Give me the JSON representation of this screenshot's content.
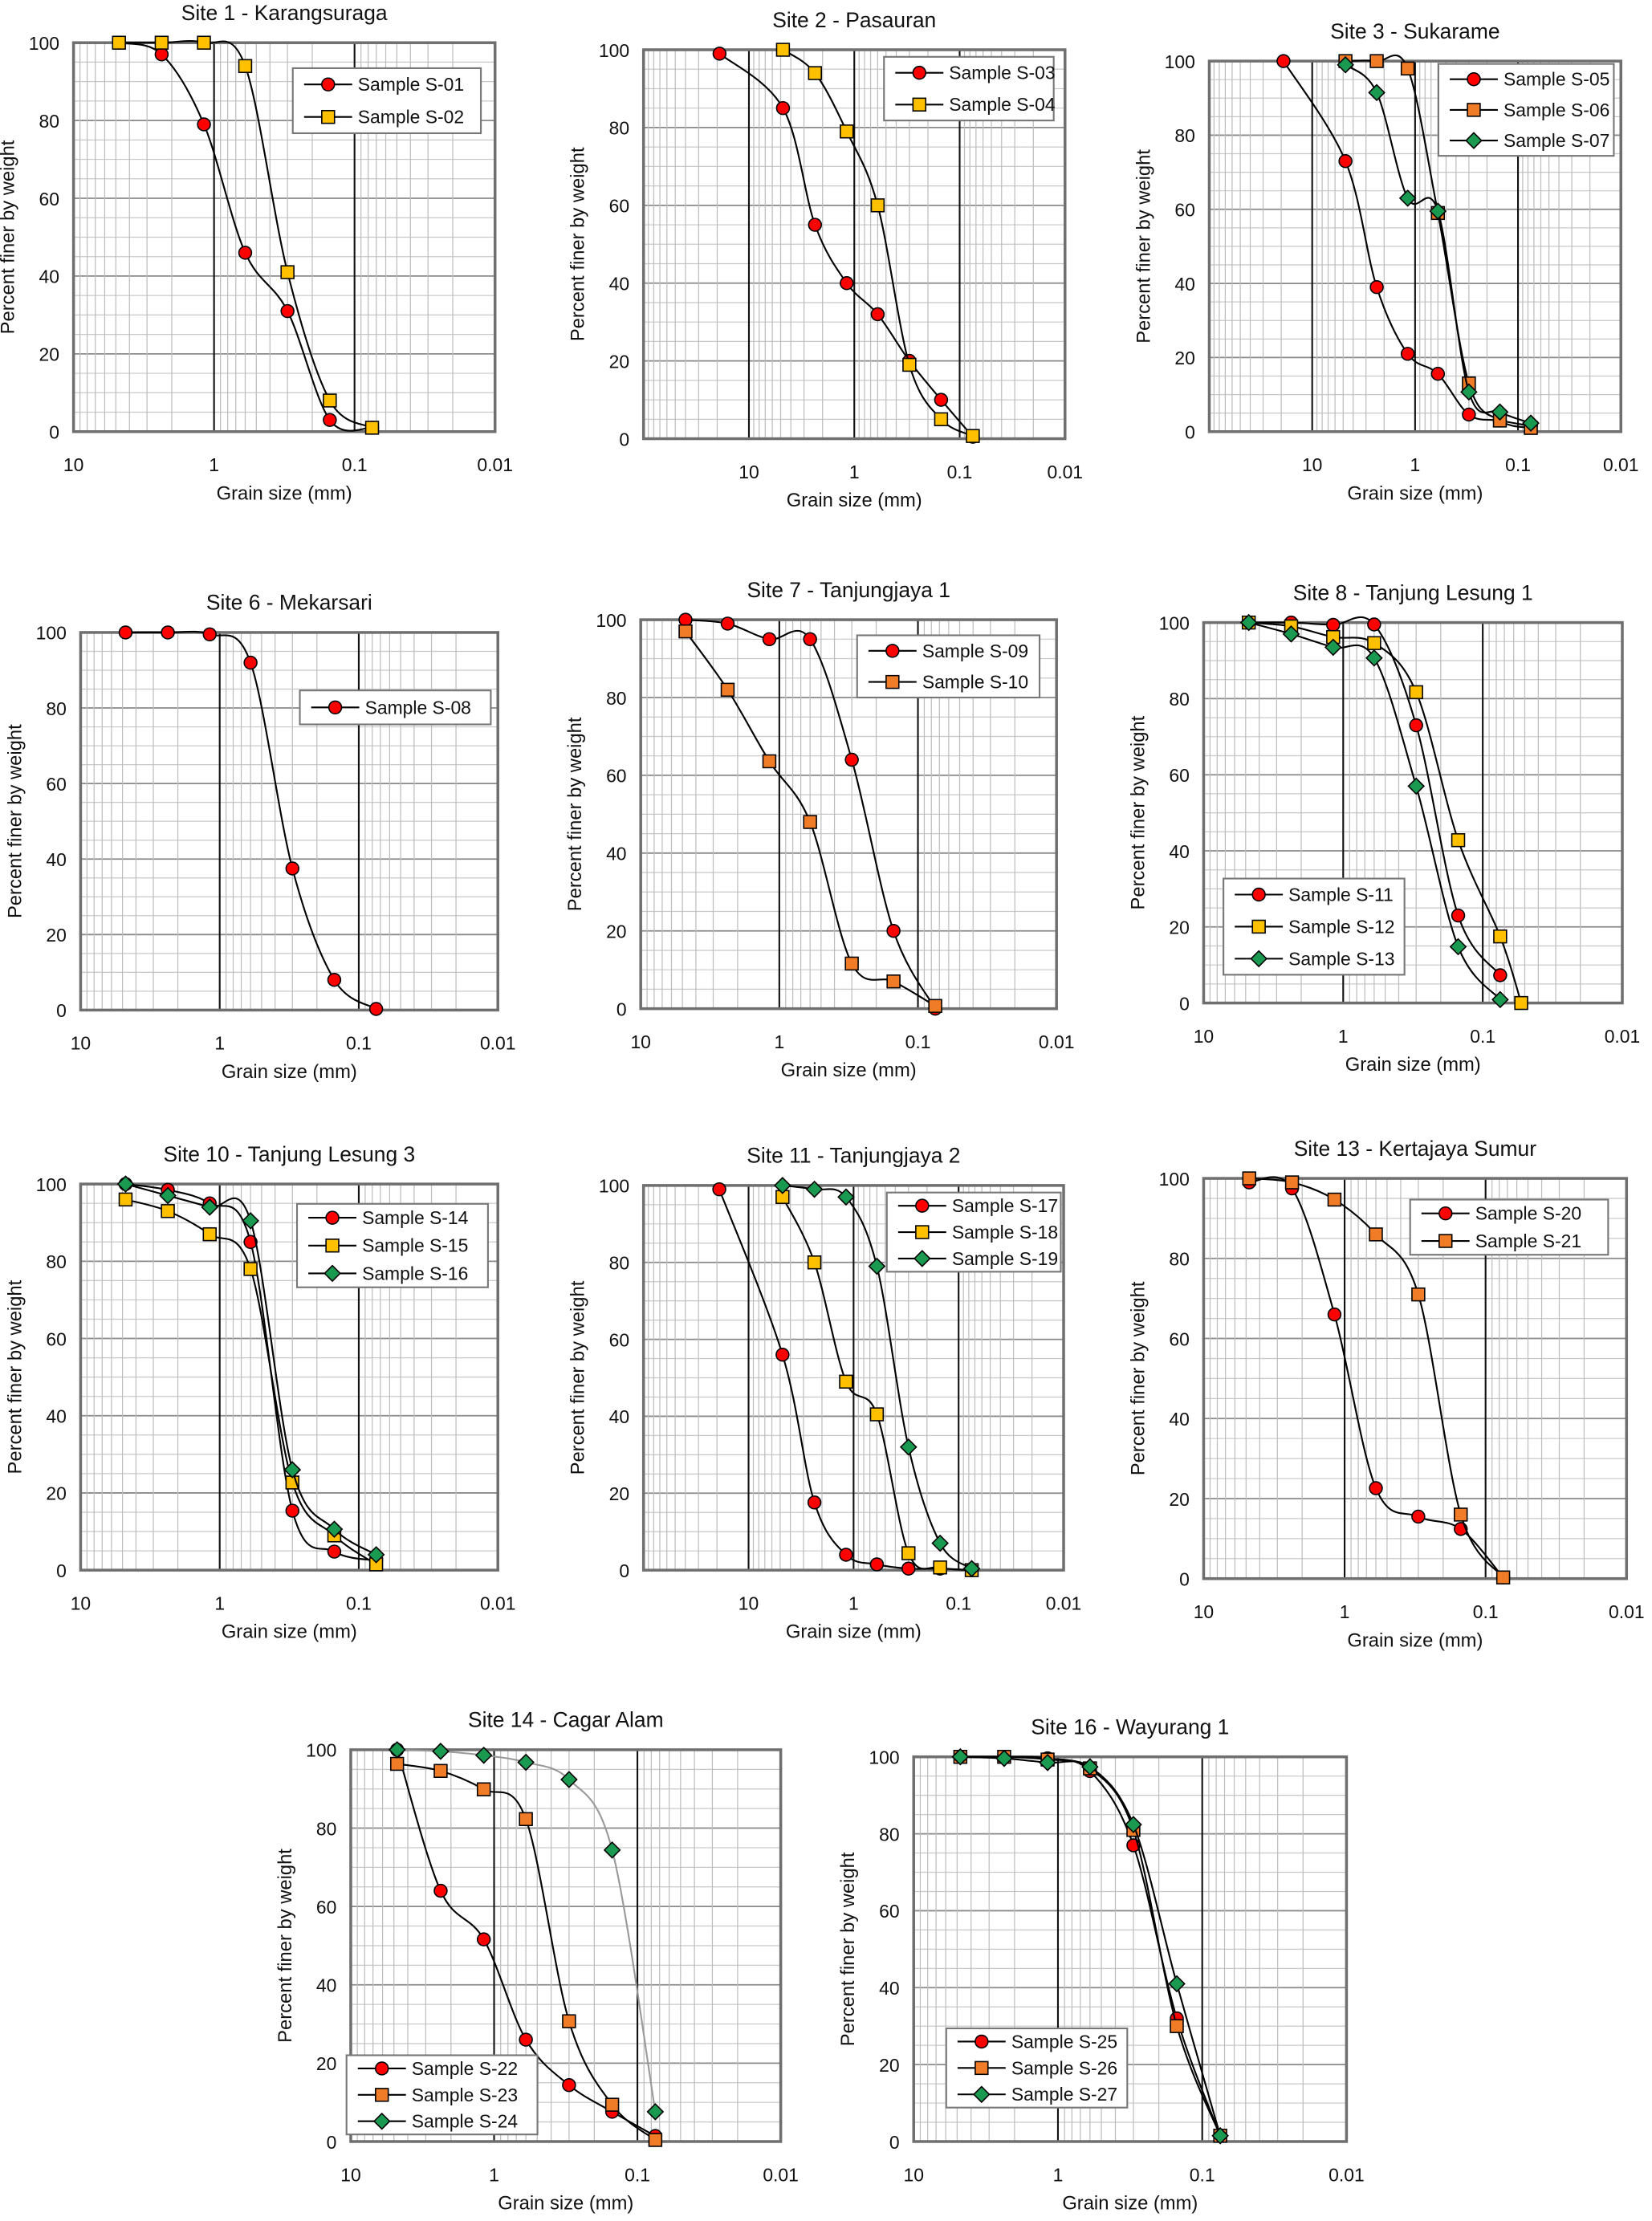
{
  "chart_data": [
    {
      "type": "line",
      "title": "Site 1 - Karangsuraga",
      "xlabel": "Grain size (mm)",
      "ylabel": "Percent finer by weight",
      "xscale": "log",
      "x_reversed": true,
      "xlim": [
        10,
        0.01
      ],
      "ylim": [
        0,
        100
      ],
      "xticks": [
        "10",
        "1",
        "0.1",
        "0.01"
      ],
      "yticks": [
        "0",
        "20",
        "40",
        "60",
        "80",
        "100"
      ],
      "grid": true,
      "legend": "top-right",
      "series": [
        {
          "name": "Sample S-01",
          "marker": "circle",
          "color": "#ff0000",
          "x": [
            4.75,
            2.36,
            1.18,
            0.6,
            0.3,
            0.15,
            0.075
          ],
          "y": [
            100,
            97,
            79,
            46,
            31,
            3,
            1
          ]
        },
        {
          "name": "Sample S-02",
          "marker": "square",
          "color": "#ffc000",
          "x": [
            4.75,
            2.36,
            1.18,
            0.6,
            0.3,
            0.15,
            0.075
          ],
          "y": [
            100,
            100,
            100,
            94,
            41,
            8,
            1
          ]
        }
      ]
    },
    {
      "type": "line",
      "title": "Site 2 - Pasauran",
      "xlabel": "Grain size (mm)",
      "ylabel": "Percent finer by weight",
      "xscale": "log",
      "x_reversed": true,
      "xlim": [
        100,
        0.01
      ],
      "ylim": [
        0,
        100
      ],
      "xticks": [
        "10",
        "1",
        "0.1",
        "0.01"
      ],
      "yticks": [
        "0",
        "20",
        "40",
        "60",
        "80",
        "100"
      ],
      "grid": true,
      "legend": "top-right",
      "series": [
        {
          "name": "Sample S-03",
          "marker": "circle",
          "color": "#ff0000",
          "x": [
            19,
            4.75,
            2.36,
            1.18,
            0.6,
            0.3,
            0.15,
            0.075
          ],
          "y": [
            99,
            85,
            55,
            40,
            32,
            20,
            10,
            0.5
          ]
        },
        {
          "name": "Sample S-04",
          "marker": "square",
          "color": "#ffc000",
          "x": [
            4.75,
            2.36,
            1.18,
            0.6,
            0.3,
            0.15,
            0.075
          ],
          "y": [
            100,
            94,
            79,
            60,
            19,
            5,
            0.7
          ]
        }
      ]
    },
    {
      "type": "line",
      "title": "Site 3 - Sukarame",
      "xlabel": "Grain size (mm)",
      "ylabel": "Percent finer by weight",
      "xscale": "log",
      "x_reversed": true,
      "xlim": [
        100,
        0.01
      ],
      "ylim": [
        0,
        100
      ],
      "xticks": [
        "10",
        "1",
        "0.1",
        "0.01"
      ],
      "yticks": [
        "0",
        "20",
        "40",
        "60",
        "80",
        "100"
      ],
      "grid": true,
      "legend": "top-right",
      "series": [
        {
          "name": "Sample S-05",
          "marker": "circle",
          "color": "#ff0000",
          "x": [
            19,
            4.75,
            2.36,
            1.18,
            0.6,
            0.3,
            0.15,
            0.075
          ],
          "y": [
            100,
            73,
            39,
            21,
            15.6,
            4.6,
            3,
            1.5
          ]
        },
        {
          "name": "Sample S-06",
          "marker": "square",
          "color": "#f07c28",
          "x": [
            4.75,
            2.36,
            1.18,
            0.6,
            0.3,
            0.15,
            0.075
          ],
          "y": [
            100,
            100,
            98,
            59,
            13,
            3,
            1
          ]
        },
        {
          "name": "Sample S-07",
          "marker": "diamond",
          "color": "#1a9a50",
          "x": [
            4.75,
            2.36,
            1.18,
            0.6,
            0.3,
            0.15,
            0.075
          ],
          "y": [
            99,
            91.5,
            63,
            59.5,
            10.7,
            5.3,
            2.3
          ]
        }
      ]
    },
    {
      "type": "line",
      "title": "Site 6 - Mekarsari",
      "xlabel": "Grain size  (mm)",
      "ylabel": "Percent finer by weight",
      "xscale": "log",
      "x_reversed": true,
      "xlim": [
        10,
        0.01
      ],
      "ylim": [
        0,
        100
      ],
      "xticks": [
        "10",
        "1",
        "0.1",
        "0.01"
      ],
      "yticks": [
        "0",
        "20",
        "40",
        "60",
        "80",
        "100"
      ],
      "grid": true,
      "legend": "top-right",
      "series": [
        {
          "name": "Sample S-08",
          "marker": "circle",
          "color": "#ff0000",
          "x": [
            4.75,
            2.36,
            1.18,
            0.6,
            0.3,
            0.15,
            0.075
          ],
          "y": [
            100,
            100,
            99.5,
            92,
            37.5,
            8,
            0.3
          ]
        }
      ]
    },
    {
      "type": "line",
      "title": "Site 7 - Tanjungjaya 1",
      "xlabel": "Grain size (mm)",
      "ylabel": "Percent finer by weight",
      "xscale": "log",
      "x_reversed": true,
      "xlim": [
        10,
        0.01
      ],
      "ylim": [
        0,
        100
      ],
      "xticks": [
        "10",
        "1",
        "0.1",
        "0.01"
      ],
      "yticks": [
        "0",
        "20",
        "40",
        "60",
        "80",
        "100"
      ],
      "grid": true,
      "legend": "top-right",
      "series": [
        {
          "name": "Sample S-09",
          "marker": "circle",
          "color": "#ff0000",
          "x": [
            4.75,
            2.36,
            1.18,
            0.6,
            0.3,
            0.15,
            0.075
          ],
          "y": [
            100,
            99,
            95,
            95,
            64,
            20,
            0
          ]
        },
        {
          "name": "Sample S-10",
          "marker": "square",
          "color": "#f07c28",
          "x": [
            4.75,
            2.36,
            1.18,
            0.6,
            0.3,
            0.15,
            0.075
          ],
          "y": [
            97,
            82,
            63.6,
            48,
            11.6,
            7,
            0.7
          ]
        }
      ]
    },
    {
      "type": "line",
      "title": "Site 8 - Tanjung  Lesung 1",
      "xlabel": "Grain size (mm)",
      "ylabel": "Percent finer by weight",
      "xscale": "log",
      "x_reversed": true,
      "xlim": [
        10,
        0.01
      ],
      "ylim": [
        0,
        100
      ],
      "xticks": [
        "10",
        "1",
        "0.1",
        "0.01"
      ],
      "yticks": [
        "0",
        "20",
        "40",
        "60",
        "80",
        "100"
      ],
      "grid": true,
      "legend": "bottom-left",
      "series": [
        {
          "name": "Sample S-11",
          "marker": "circle",
          "color": "#ff0000",
          "x": [
            4.75,
            2.36,
            1.18,
            0.6,
            0.3,
            0.15,
            0.075
          ],
          "y": [
            100,
            100,
            99.4,
            99.5,
            73,
            23,
            7.3
          ]
        },
        {
          "name": "Sample S-12",
          "marker": "square",
          "color": "#ffc000",
          "x": [
            4.75,
            2.36,
            1.18,
            0.6,
            0.3,
            0.15,
            0.075,
            0.053
          ],
          "y": [
            100,
            99,
            96.2,
            94.6,
            81.7,
            42.8,
            17.5,
            0
          ]
        },
        {
          "name": "Sample S-13",
          "marker": "diamond",
          "color": "#1a9a50",
          "x": [
            4.75,
            2.36,
            1.18,
            0.6,
            0.3,
            0.15,
            0.075
          ],
          "y": [
            100,
            97,
            93.5,
            90.7,
            57,
            14.8,
            0.9
          ]
        }
      ]
    },
    {
      "type": "line",
      "title": "Site 10 - Tanjung  Lesung 3",
      "xlabel": "Grain size (mm)",
      "ylabel": "Percent finer by weight",
      "xscale": "log",
      "x_reversed": true,
      "xlim": [
        10,
        0.01
      ],
      "ylim": [
        0,
        100
      ],
      "xticks": [
        "10",
        "1",
        "0.1",
        "0.01"
      ],
      "yticks": [
        "0",
        "20",
        "40",
        "60",
        "80",
        "100"
      ],
      "grid": true,
      "legend": "top-right",
      "series": [
        {
          "name": "Sample S-14",
          "marker": "circle",
          "color": "#ff0000",
          "x": [
            4.75,
            2.36,
            1.18,
            0.6,
            0.3,
            0.15,
            0.075
          ],
          "y": [
            100,
            98.5,
            95,
            85,
            15.4,
            4.8,
            2.5
          ]
        },
        {
          "name": "Sample S-15",
          "marker": "square",
          "color": "#ffc000",
          "x": [
            4.75,
            2.36,
            1.18,
            0.6,
            0.3,
            0.15,
            0.075
          ],
          "y": [
            96,
            93,
            87,
            78,
            22.7,
            9,
            1.5
          ]
        },
        {
          "name": "Sample S-16",
          "marker": "diamond",
          "color": "#1a9a50",
          "x": [
            4.75,
            2.36,
            1.18,
            0.6,
            0.3,
            0.15,
            0.075
          ],
          "y": [
            100,
            97,
            94,
            90.5,
            26,
            10.6,
            4
          ]
        }
      ]
    },
    {
      "type": "line",
      "title": "Site 11 - Tanjungjaya 2",
      "xlabel": "Grain size (mm)",
      "ylabel": "Percent finer by weight",
      "xscale": "log",
      "x_reversed": true,
      "xlim": [
        100,
        0.01
      ],
      "ylim": [
        0,
        100
      ],
      "xticks": [
        "10",
        "1",
        "0.1",
        "0.01"
      ],
      "yticks": [
        "0",
        "20",
        "40",
        "60",
        "80",
        "100"
      ],
      "grid": true,
      "legend": "top-right",
      "series": [
        {
          "name": "Sample S-17",
          "marker": "circle",
          "color": "#ff0000",
          "x": [
            19,
            4.75,
            2.36,
            1.18,
            0.6,
            0.3,
            0.15,
            0.075
          ],
          "y": [
            99,
            56,
            17.6,
            4,
            1.5,
            0.4,
            0.4,
            0
          ]
        },
        {
          "name": "Sample S-18",
          "marker": "square",
          "color": "#ffc000",
          "x": [
            4.75,
            2.36,
            1.18,
            0.6,
            0.3,
            0.15,
            0.075
          ],
          "y": [
            97,
            80,
            49,
            40.5,
            4.4,
            0.7,
            0
          ]
        },
        {
          "name": "Sample S-19",
          "marker": "diamond",
          "color": "#1a9a50",
          "x": [
            4.75,
            2.36,
            1.18,
            0.6,
            0.3,
            0.15,
            0.075
          ],
          "y": [
            100,
            99,
            97,
            79,
            32,
            7,
            0.4
          ]
        }
      ]
    },
    {
      "type": "line",
      "title": "Site 13 - Kertajaya Sumur",
      "xlabel": "Grain size (mm)",
      "ylabel": "Percent finer by weight",
      "xscale": "log",
      "x_reversed": true,
      "xlim": [
        10,
        0.01
      ],
      "ylim": [
        0,
        100
      ],
      "xticks": [
        "10",
        "1",
        "0.1",
        "0.01"
      ],
      "yticks": [
        "0",
        "20",
        "40",
        "60",
        "80",
        "100"
      ],
      "grid": true,
      "legend": "top-right",
      "series": [
        {
          "name": "Sample S-20",
          "marker": "circle",
          "color": "#ff0000",
          "x": [
            4.75,
            2.36,
            1.18,
            0.6,
            0.3,
            0.15,
            0.075
          ],
          "y": [
            99,
            97.5,
            66,
            22.6,
            15.5,
            12.4,
            0.3
          ]
        },
        {
          "name": "Sample S-21",
          "marker": "square",
          "color": "#f07c28",
          "x": [
            4.75,
            2.36,
            1.18,
            0.6,
            0.3,
            0.15,
            0.075
          ],
          "y": [
            100,
            99,
            94.7,
            86,
            71,
            16,
            0.3
          ]
        }
      ]
    },
    {
      "type": "line",
      "title": "Site 14 - Cagar Alam",
      "xlabel": "Grain size (mm)",
      "ylabel": "Percent finer by weight",
      "xscale": "log",
      "x_reversed": true,
      "xlim": [
        10,
        0.01
      ],
      "ylim": [
        0,
        100
      ],
      "xticks": [
        "10",
        "1",
        "0.1",
        "0.01"
      ],
      "yticks": [
        "0",
        "20",
        "40",
        "60",
        "80",
        "100"
      ],
      "grid": true,
      "legend": "bottom-left",
      "series": [
        {
          "name": "Sample S-22",
          "marker": "circle",
          "color": "#ff0000",
          "x": [
            4.75,
            2.36,
            1.18,
            0.6,
            0.3,
            0.15,
            0.075
          ],
          "y": [
            100,
            64,
            51.6,
            26,
            14.4,
            7.6,
            1.4
          ]
        },
        {
          "name": "Sample S-23",
          "marker": "square",
          "color": "#f07c28",
          "x": [
            4.75,
            2.36,
            1.18,
            0.6,
            0.3,
            0.15,
            0.075
          ],
          "y": [
            96.4,
            94.6,
            89.9,
            82.3,
            30.7,
            9.4,
            0.4
          ]
        },
        {
          "name": "Sample S-24",
          "marker": "diamond",
          "color": "#1a9a50",
          "line_color": "#999999",
          "x": [
            4.75,
            2.36,
            1.18,
            0.6,
            0.3,
            0.15,
            0.075
          ],
          "y": [
            100,
            99.6,
            98.6,
            96.8,
            92.4,
            74.4,
            7.6
          ]
        }
      ]
    },
    {
      "type": "line",
      "title": "Site 16 - Wayurang 1",
      "xlabel": "Grain size (mm)",
      "ylabel": "Percent finer by weight",
      "xscale": "log",
      "x_reversed": true,
      "xlim": [
        10,
        0.01
      ],
      "ylim": [
        0,
        100
      ],
      "xticks": [
        "10",
        "1",
        "0.1",
        "0.01"
      ],
      "yticks": [
        "0",
        "20",
        "40",
        "60",
        "80",
        "100"
      ],
      "grid": true,
      "legend": "bottom-left",
      "series": [
        {
          "name": "Sample S-25",
          "marker": "circle",
          "color": "#ff0000",
          "x": [
            4.75,
            2.36,
            1.18,
            0.6,
            0.3,
            0.15,
            0.075
          ],
          "y": [
            100,
            100,
            99.6,
            96.3,
            77,
            32,
            1.5
          ]
        },
        {
          "name": "Sample S-26",
          "marker": "square",
          "color": "#f07c28",
          "x": [
            4.75,
            2.36,
            1.18,
            0.6,
            0.3,
            0.15,
            0.075
          ],
          "y": [
            100,
            100,
            99.3,
            97,
            81,
            30,
            1.5
          ]
        },
        {
          "name": "Sample S-27",
          "marker": "diamond",
          "color": "#1a9a50",
          "x": [
            4.75,
            2.36,
            1.18,
            0.6,
            0.3,
            0.15,
            0.075
          ],
          "y": [
            100,
            99.6,
            98.5,
            97.4,
            82.4,
            41,
            1.5
          ]
        }
      ]
    }
  ]
}
